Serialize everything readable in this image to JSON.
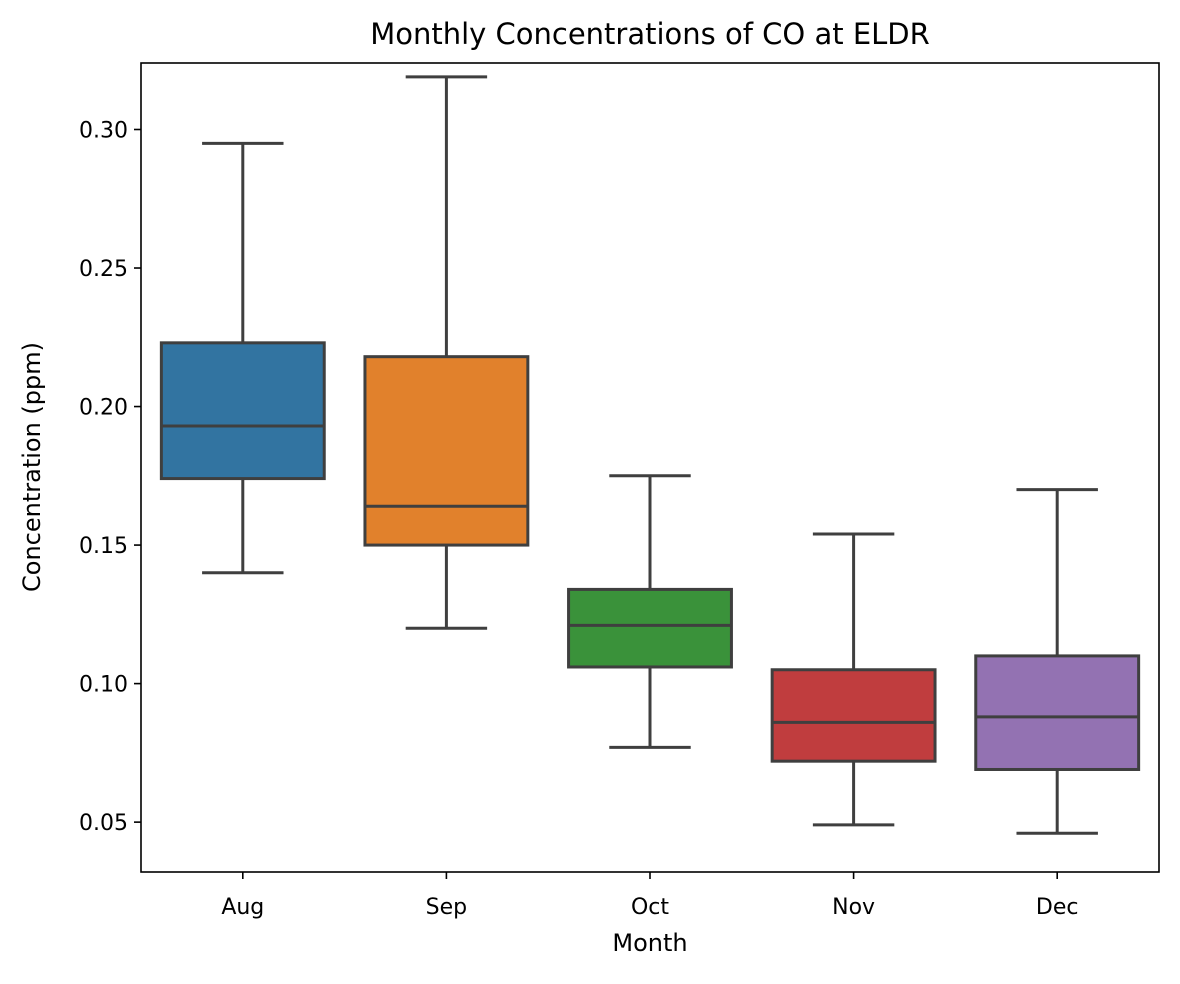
{
  "chart_data": {
    "type": "box",
    "title": "Monthly Concentrations of CO at ELDR",
    "xlabel": "Month",
    "ylabel": "Concentration (ppm)",
    "categories": [
      "Aug",
      "Sep",
      "Oct",
      "Nov",
      "Dec"
    ],
    "ylim": [
      0.032,
      0.324
    ],
    "yticks": [
      0.05,
      0.1,
      0.15,
      0.2,
      0.25,
      0.3
    ],
    "ytick_labels": [
      "0.05",
      "0.10",
      "0.15",
      "0.20",
      "0.25",
      "0.30"
    ],
    "grid": false,
    "legend": "none",
    "boxes": [
      {
        "category": "Aug",
        "whisker_low": 0.14,
        "q1": 0.174,
        "median": 0.193,
        "q3": 0.223,
        "whisker_high": 0.295,
        "color": "#3274a1"
      },
      {
        "category": "Sep",
        "whisker_low": 0.12,
        "q1": 0.15,
        "median": 0.164,
        "q3": 0.218,
        "whisker_high": 0.319,
        "color": "#e1812c"
      },
      {
        "category": "Oct",
        "whisker_low": 0.077,
        "q1": 0.106,
        "median": 0.121,
        "q3": 0.134,
        "whisker_high": 0.175,
        "color": "#3a923a"
      },
      {
        "category": "Nov",
        "whisker_low": 0.049,
        "q1": 0.072,
        "median": 0.086,
        "q3": 0.105,
        "whisker_high": 0.154,
        "color": "#c03d3e"
      },
      {
        "category": "Dec",
        "whisker_low": 0.046,
        "q1": 0.069,
        "median": 0.088,
        "q3": 0.11,
        "whisker_high": 0.17,
        "color": "#9372b2"
      }
    ],
    "line_color": "#3f3f3f"
  }
}
